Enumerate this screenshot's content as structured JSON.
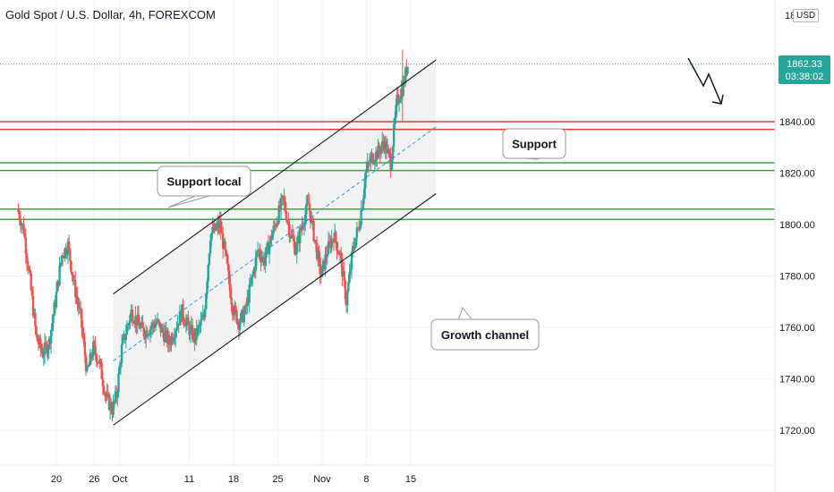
{
  "header": {
    "title": "Gold Spot / U.S. Dollar, 4h, FOREXCOM",
    "currency": "USD"
  },
  "price_tag": {
    "price": "1862.33",
    "countdown": "03:38:02",
    "color": "#26a69a"
  },
  "annotations": {
    "support": "Support",
    "support_local": "Support local",
    "growth_channel": "Growth channel"
  },
  "colors": {
    "up": "#26a69a",
    "down": "#ef5350",
    "resistance": "#e53935",
    "support": "#43a047",
    "channel": "#131722",
    "mid": "#2196f3"
  },
  "chart_data": {
    "type": "candlestick",
    "title": "Gold Spot / U.S. Dollar, 4h, FOREXCOM",
    "ylim": [
      1710,
      1880
    ],
    "yticks": [
      1720,
      1740,
      1760,
      1780,
      1800,
      1820,
      1840
    ],
    "ytick_top": "18",
    "xticks": [
      {
        "label": "20",
        "day": 20
      },
      {
        "label": "26",
        "day": 26
      },
      {
        "label": "Oct",
        "day": 30
      },
      {
        "label": "11",
        "day": 41
      },
      {
        "label": "18",
        "day": 48
      },
      {
        "label": "25",
        "day": 55
      },
      {
        "label": "Nov",
        "day": 62
      },
      {
        "label": "8",
        "day": 69
      },
      {
        "label": "15",
        "day": 76
      }
    ],
    "horizontal_levels": [
      {
        "kind": "resistance",
        "values": [
          1840,
          1837
        ]
      },
      {
        "kind": "support",
        "values": [
          1824,
          1821
        ]
      },
      {
        "kind": "support",
        "values": [
          1806,
          1802
        ]
      }
    ],
    "last_price": 1862.33,
    "channel": {
      "upper": [
        [
          29,
          1773
        ],
        [
          80,
          1864
        ]
      ],
      "lower": [
        [
          29,
          1722
        ],
        [
          80,
          1812
        ]
      ],
      "mid": [
        [
          29,
          1747
        ],
        [
          80,
          1838
        ]
      ]
    },
    "ohlc_anchors": [
      [
        14,
        1806
      ],
      [
        15,
        1798
      ],
      [
        16,
        1778
      ],
      [
        17,
        1756
      ],
      [
        18,
        1750
      ],
      [
        19,
        1754
      ],
      [
        20,
        1770
      ],
      [
        21,
        1788
      ],
      [
        22,
        1792
      ],
      [
        23,
        1776
      ],
      [
        24,
        1764
      ],
      [
        25,
        1742
      ],
      [
        26,
        1752
      ],
      [
        27,
        1746
      ],
      [
        28,
        1733
      ],
      [
        29,
        1728
      ],
      [
        29.7,
        1734
      ],
      [
        30.5,
        1752
      ],
      [
        32,
        1766
      ],
      [
        33,
        1762
      ],
      [
        34,
        1758
      ],
      [
        36,
        1762
      ],
      [
        38,
        1754
      ],
      [
        40,
        1766
      ],
      [
        41,
        1760
      ],
      [
        42,
        1756
      ],
      [
        43.5,
        1764
      ],
      [
        44.5,
        1796
      ],
      [
        46,
        1800
      ],
      [
        47,
        1786
      ],
      [
        48,
        1768
      ],
      [
        49,
        1762
      ],
      [
        50,
        1766
      ],
      [
        51,
        1778
      ],
      [
        52,
        1790
      ],
      [
        53,
        1786
      ],
      [
        54,
        1794
      ],
      [
        55,
        1802
      ],
      [
        56,
        1810
      ],
      [
        57,
        1798
      ],
      [
        58,
        1790
      ],
      [
        59,
        1800
      ],
      [
        60,
        1808
      ],
      [
        61,
        1794
      ],
      [
        62,
        1780
      ],
      [
        63,
        1790
      ],
      [
        64,
        1796
      ],
      [
        65,
        1788
      ],
      [
        66,
        1770
      ],
      [
        67,
        1790
      ],
      [
        68,
        1800
      ],
      [
        68.5,
        1808
      ],
      [
        69,
        1820
      ],
      [
        70,
        1826
      ],
      [
        71,
        1828
      ],
      [
        72,
        1832
      ],
      [
        73,
        1824
      ],
      [
        74,
        1848
      ],
      [
        75,
        1854
      ],
      [
        75.6,
        1862
      ]
    ]
  }
}
